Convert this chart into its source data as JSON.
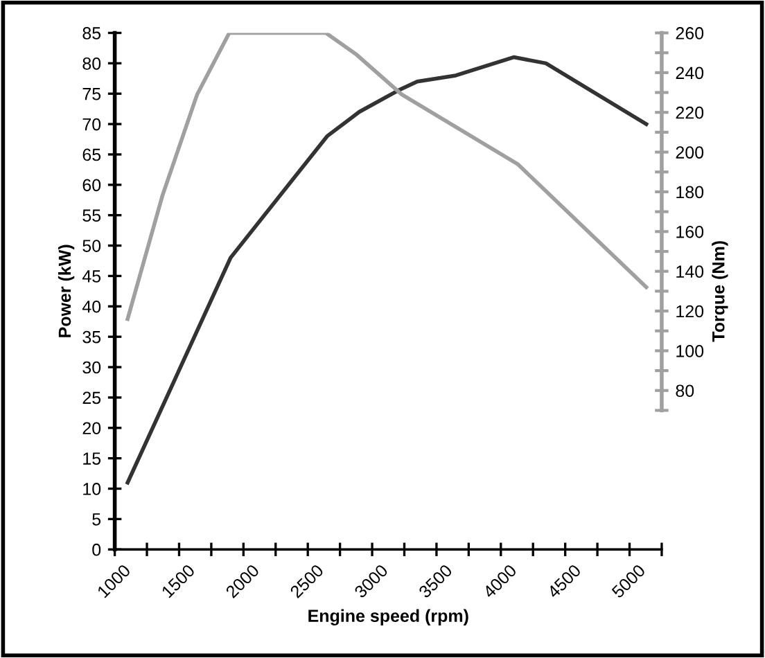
{
  "chart_data": {
    "type": "line",
    "xlabel": "Engine speed (rpm)",
    "ylabel": "Power (kW)",
    "y2label": "Torque (Nm)",
    "xlim": [
      1000,
      5250
    ],
    "xticks": [
      1000,
      {
        "value": 1250,
        "label": null
      },
      1500,
      {
        "value": 1750,
        "label": null
      },
      2000,
      {
        "value": 2250,
        "label": null
      },
      2500,
      {
        "value": 2750,
        "label": null
      },
      3000,
      {
        "value": 3250,
        "label": null
      },
      3500,
      {
        "value": 3750,
        "label": null
      },
      4000,
      {
        "value": 4250,
        "label": null
      },
      4500,
      {
        "value": 4750,
        "label": null
      },
      5000,
      {
        "value": 5250,
        "label": null
      }
    ],
    "ylim": [
      0,
      85
    ],
    "yticks": [
      0,
      5,
      10,
      15,
      20,
      25,
      30,
      35,
      40,
      45,
      50,
      55,
      60,
      65,
      70,
      75,
      80,
      85
    ],
    "y2lim": [
      0,
      260
    ],
    "y2ticks": [
      {
        "value": 70,
        "label": null
      },
      80,
      {
        "value": 90,
        "label": null
      },
      100,
      {
        "value": 110,
        "label": null
      },
      120,
      {
        "value": 130,
        "label": null
      },
      140,
      {
        "value": 150,
        "label": null
      },
      160,
      {
        "value": 170,
        "label": null
      },
      180,
      {
        "value": 190,
        "label": null
      },
      200,
      {
        "value": 210,
        "label": null
      },
      220,
      {
        "value": 230,
        "label": null
      },
      240,
      {
        "value": 250,
        "label": null
      },
      260
    ],
    "grid": false,
    "legend": false,
    "marker": "none",
    "line_style": "solid",
    "series": [
      {
        "color": "#333333",
        "x": [
          1100,
          1900,
          2650,
          2900,
          3200,
          3350,
          3650,
          4100,
          4350,
          5130
        ],
        "values": [
          11,
          48,
          68,
          72,
          75.5,
          77,
          78,
          81,
          80,
          70
        ]
      },
      {
        "color": "#a0a0a0",
        "axis": "y2",
        "x": [
          1100,
          1370,
          1640,
          1890,
          2640,
          2880,
          3230,
          4130,
          5130
        ],
        "values": [
          116,
          178,
          229,
          260,
          260,
          249,
          229,
          194,
          132
        ]
      }
    ]
  }
}
